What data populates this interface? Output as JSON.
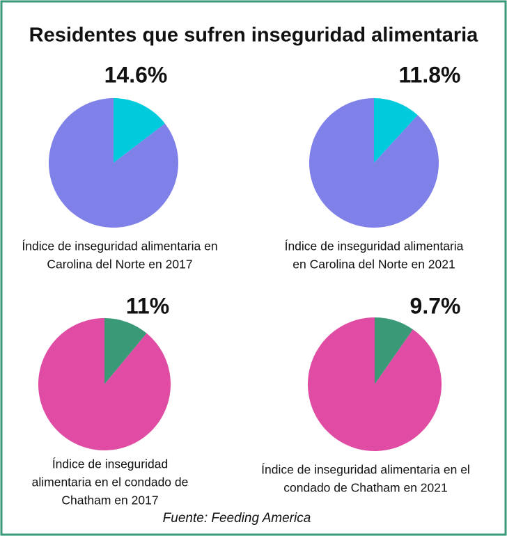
{
  "title": "Residentes que sufren inseguridad alimentaria",
  "source": "Fuente: Feeding America",
  "chart_data": [
    {
      "type": "pie",
      "values": [
        14.6,
        85.4
      ],
      "value_labels": [
        "14.6%",
        null
      ],
      "colors": [
        "#00cbdc",
        "#7f80e8"
      ],
      "caption": [
        "Índice de inseguridad alimentaria en",
        "Carolina del Norte en 2017"
      ]
    },
    {
      "type": "pie",
      "values": [
        11.8,
        88.2
      ],
      "value_labels": [
        "11.8%",
        null
      ],
      "colors": [
        "#00cbdc",
        "#7f80e8"
      ],
      "caption": [
        "Índice de inseguridad alimentaria",
        "en Carolina del Norte en 2021"
      ]
    },
    {
      "type": "pie",
      "values": [
        11,
        89
      ],
      "value_labels": [
        "11%",
        null
      ],
      "colors": [
        "#3a9a78",
        "#e04ca3"
      ],
      "caption": [
        "Índice de inseguridad",
        "alimentaria en el condado de",
        "Chatham en 2017"
      ]
    },
    {
      "type": "pie",
      "values": [
        9.7,
        90.3
      ],
      "value_labels": [
        "9.7%",
        null
      ],
      "colors": [
        "#3a9a78",
        "#e04ca3"
      ],
      "caption": [
        "Índice de inseguridad alimentaria en el",
        "condado de Chatham en 2021"
      ]
    }
  ]
}
